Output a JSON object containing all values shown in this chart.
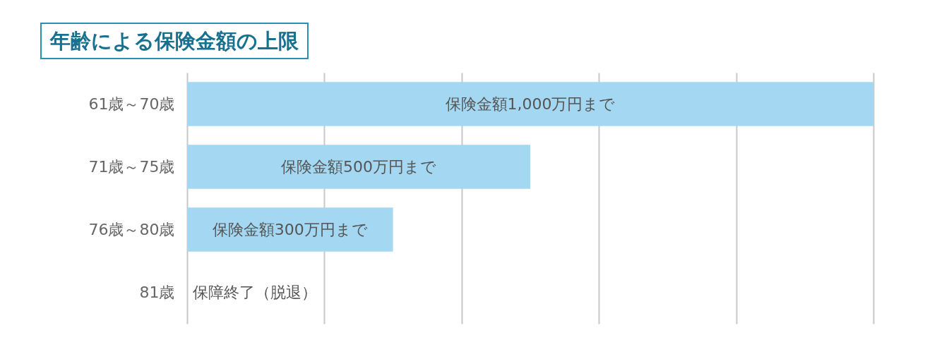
{
  "chart_data": {
    "type": "bar",
    "orientation": "horizontal",
    "title": "年齢による保険金額の上限",
    "categories": [
      "61歳～70歳",
      "71歳～75歳",
      "76歳～80歳",
      "81歳"
    ],
    "values": [
      1000,
      500,
      300,
      null
    ],
    "value_labels": [
      "保険金額1,000万円まで",
      "保険金額500万円まで",
      "保険金額300万円まで",
      "保障終了（脱退）"
    ],
    "color": "#a4d8f2",
    "xlim": [
      0,
      1000
    ],
    "xticks": [
      {
        "value": 0,
        "label": null
      },
      {
        "value": 200,
        "label": null
      },
      {
        "value": 400,
        "label": null
      },
      {
        "value": 600,
        "label": null
      },
      {
        "value": 800,
        "label": null
      },
      {
        "value": 1000,
        "label": null
      }
    ],
    "grid": "x",
    "tick_labels": "y"
  }
}
